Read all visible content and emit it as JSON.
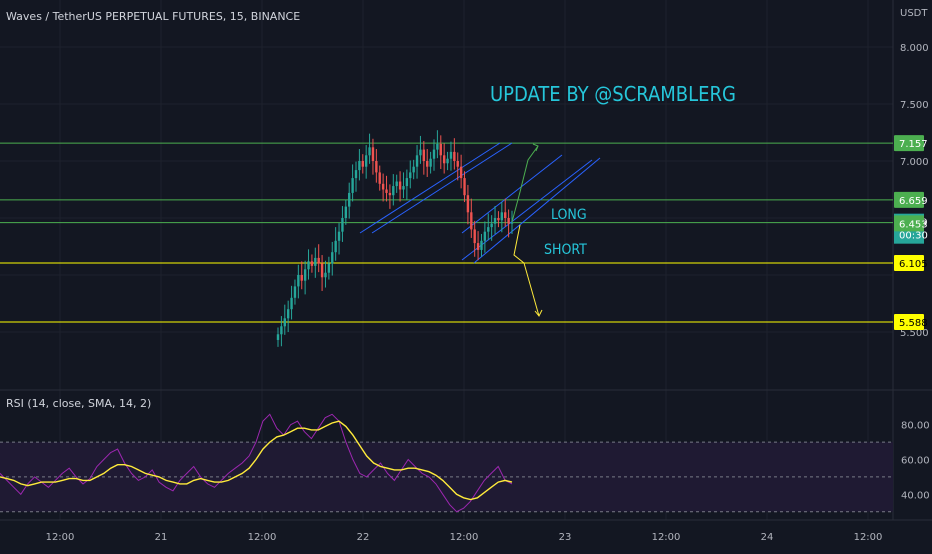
{
  "header": {
    "title": "Waves / TetherUS PERPETUAL FUTURES, 15, BINANCE",
    "currency": "USDT"
  },
  "rsi_header": "RSI (14, close, SMA, 14, 2)",
  "annotations": {
    "update": "UPDATE BY @SCRAMBLERG",
    "long": "LONG",
    "short": "SHORT"
  },
  "colors": {
    "background": "#131722",
    "up": "#26a69a",
    "down": "#ef5350",
    "green_level": "#4caf50",
    "yellow_level": "#ffff00",
    "channel": "#2962ff",
    "annotation": "#26c6da",
    "rsi_line": "#9c27b0",
    "rsi_ma": "#ffeb3b"
  },
  "chart_data": [
    {
      "type": "candlestick",
      "title": "Waves / TetherUS PERPETUAL FUTURES, 15, BINANCE",
      "ylabel": "USDT",
      "ylim": [
        5.4,
        8.2
      ],
      "y_ticks": [
        "8.000",
        "7.500",
        "7.000",
        "5.500"
      ],
      "x_ticks": [
        "12:00",
        "21",
        "12:00",
        "22",
        "12:00",
        "23",
        "12:00",
        "24",
        "12:00"
      ],
      "price_levels": [
        {
          "value": 7.157,
          "label": "7.157",
          "color": "green"
        },
        {
          "value": 6.659,
          "label": "6.659",
          "color": "green"
        },
        {
          "value": 6.459,
          "label": "6.459",
          "color": "green"
        },
        {
          "value": 6.105,
          "label": "6.105",
          "color": "yellow"
        },
        {
          "value": 5.588,
          "label": "5.588",
          "color": "yellow"
        }
      ],
      "last_price": {
        "value": 6.459,
        "label": "6.459",
        "countdown": "00:30"
      },
      "secondary_tag": {
        "value": 6.453,
        "label": "6.453"
      },
      "closes": [
        5.48,
        5.55,
        5.62,
        5.7,
        5.8,
        5.9,
        6.0,
        5.95,
        6.05,
        6.12,
        6.08,
        6.15,
        6.1,
        5.98,
        6.02,
        6.1,
        6.2,
        6.3,
        6.38,
        6.5,
        6.6,
        6.72,
        6.85,
        6.92,
        7.0,
        6.95,
        7.05,
        7.12,
        7.0,
        6.9,
        6.8,
        6.75,
        6.72,
        6.7,
        6.78,
        6.82,
        6.75,
        6.78,
        6.85,
        6.9,
        6.95,
        7.05,
        7.1,
        7.0,
        6.95,
        7.02,
        7.1,
        7.15,
        7.05,
        6.98,
        7.02,
        7.08,
        7.0,
        6.95,
        6.85,
        6.7,
        6.55,
        6.4,
        6.28,
        6.22,
        6.3,
        6.38,
        6.42,
        6.45,
        6.5,
        6.48,
        6.55,
        6.5,
        6.45,
        6.459
      ]
    },
    {
      "type": "line",
      "title": "RSI (14, close, SMA, 14, 2)",
      "ylim": [
        25,
        90
      ],
      "y_ticks": [
        "80.00",
        "60.00",
        "40.00"
      ],
      "bands": [
        70,
        50,
        30
      ],
      "series": [
        {
          "values": [
            52,
            48,
            44,
            40,
            46,
            50,
            47,
            44,
            48,
            52,
            55,
            50,
            46,
            49,
            56,
            60,
            64,
            66,
            58,
            52,
            48,
            50,
            54,
            47,
            44,
            42,
            48,
            52,
            56,
            50,
            46,
            44,
            48,
            52,
            55,
            58,
            62,
            70,
            82,
            86,
            78,
            74,
            80,
            82,
            76,
            72,
            78,
            84,
            86,
            82,
            70,
            60,
            52,
            50,
            54,
            58,
            52,
            48,
            54,
            60,
            56,
            52,
            50,
            46,
            40,
            34,
            30,
            32,
            36,
            42,
            48,
            52,
            56,
            48,
            46
          ]
        },
        {
          "values": [
            50,
            49,
            48,
            46,
            45,
            46,
            47,
            47,
            47,
            48,
            49,
            49,
            48,
            48,
            50,
            52,
            55,
            57,
            57,
            56,
            54,
            52,
            51,
            50,
            48,
            47,
            46,
            46,
            48,
            49,
            48,
            47,
            47,
            48,
            50,
            52,
            55,
            60,
            66,
            70,
            73,
            74,
            76,
            78,
            78,
            77,
            77,
            79,
            81,
            82,
            79,
            74,
            68,
            62,
            58,
            56,
            55,
            54,
            54,
            55,
            55,
            54,
            53,
            51,
            48,
            44,
            40,
            38,
            37,
            38,
            41,
            44,
            47,
            48,
            47
          ]
        }
      ]
    }
  ]
}
